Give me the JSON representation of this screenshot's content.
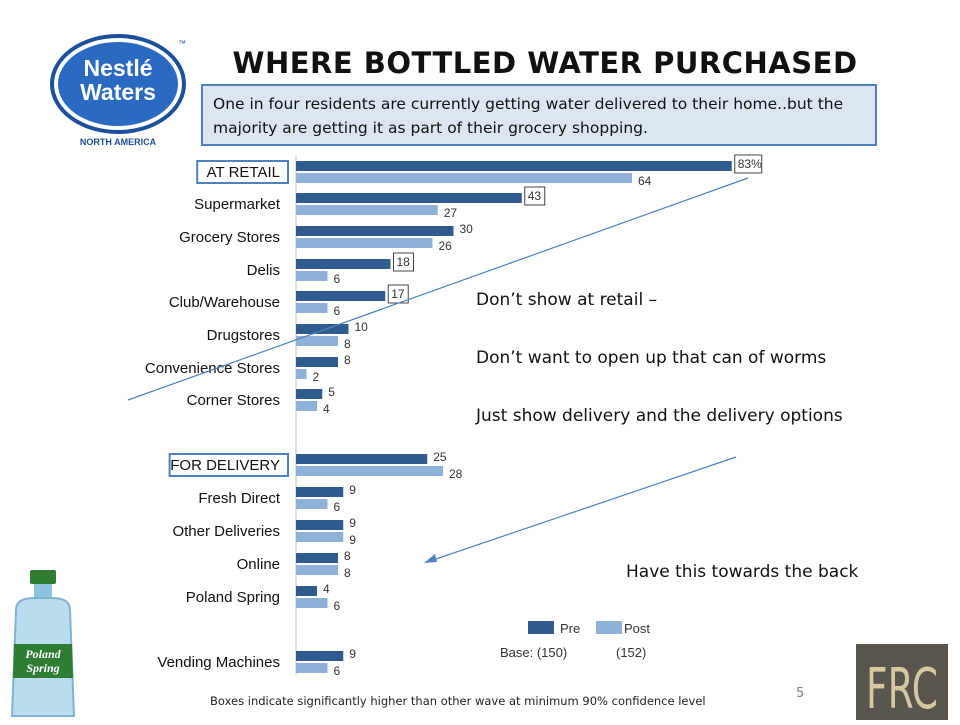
{
  "title": "WHERE BOTTLED WATER PURCHASED",
  "callout": "One in four residents are currently getting water delivered to their home..but the majority are getting it as part of their grocery shopping.",
  "logo": {
    "line1": "Nestlé",
    "line2": "Waters",
    "line3": "NORTH AMERICA",
    "tm": "™"
  },
  "notes": {
    "line1": "Don’t show at retail –",
    "line2": "Don’t want to open up that can of worms",
    "line3": "Just show delivery and the delivery options",
    "line4": "Have this towards the back"
  },
  "footnote": "Boxes indicate significantly higher than other wave at minimum 90% confidence level",
  "page_number": "5",
  "brand_mark": "FRC",
  "bottle_label": {
    "line1": "Poland",
    "line2": "Spring"
  },
  "colors": {
    "pre": "#2f5b8f",
    "post": "#8eb1d8",
    "accent": "#4f81bd"
  },
  "chart_data": {
    "type": "bar",
    "orientation": "horizontal",
    "categories": [
      "AT RETAIL",
      "Supermarket",
      "Grocery Stores",
      "Delis",
      "Club/Warehouse",
      "Drugstores",
      "Convenience Stores",
      "Corner Stores",
      "FOR DELIVERY",
      "Fresh Direct",
      "Other Deliveries",
      "Online",
      "Poland Spring",
      "Vending Machines"
    ],
    "boxed_categories": [
      "AT RETAIL",
      "FOR DELIVERY"
    ],
    "series": [
      {
        "name": "Pre",
        "values": [
          83,
          43,
          30,
          18,
          17,
          10,
          8,
          5,
          25,
          9,
          9,
          8,
          4,
          9
        ],
        "labels": [
          "83%",
          "43",
          "30",
          "18",
          "17",
          "10",
          "8",
          "5",
          "25",
          "9",
          "9",
          "8",
          "4",
          "9"
        ],
        "boxed": [
          true,
          true,
          false,
          true,
          true,
          false,
          false,
          false,
          false,
          false,
          false,
          false,
          false,
          false
        ]
      },
      {
        "name": "Post",
        "values": [
          64,
          27,
          26,
          6,
          6,
          8,
          2,
          4,
          28,
          6,
          9,
          8,
          6,
          6
        ],
        "labels": [
          "64",
          "27",
          "26",
          "6",
          "6",
          "8",
          "2",
          "4",
          "28",
          "6",
          "9",
          "8",
          "6",
          "6"
        ],
        "boxed": [
          false,
          false,
          false,
          false,
          false,
          false,
          false,
          false,
          false,
          false,
          false,
          false,
          false,
          false
        ]
      }
    ],
    "legend": {
      "position": "bottom",
      "pre_base": "Base: (150)",
      "post_base": "(152)"
    }
  }
}
